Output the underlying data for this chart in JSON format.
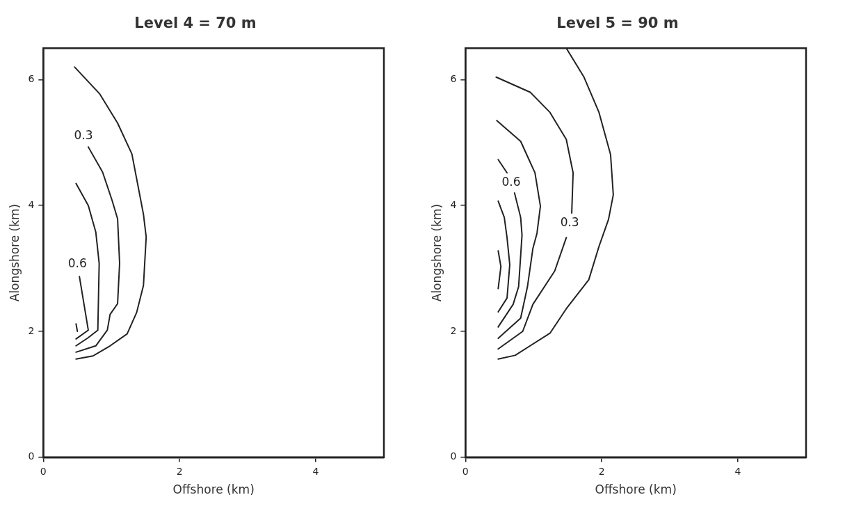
{
  "chart_data": [
    {
      "type": "line",
      "title": "Level 4 = 70 m",
      "xlabel": "Offshore (km)",
      "ylabel": "Alongshore (km)",
      "xlim": [
        0,
        5
      ],
      "ylim": [
        0,
        6.5
      ],
      "xticks": [
        0,
        2,
        4
      ],
      "yticks": [
        0,
        2,
        4,
        6
      ],
      "grid": false,
      "legend": false,
      "marker": "none",
      "line_style": "solid",
      "series": [
        {
          "color": "#222222",
          "x": [
            0.46,
            0.83,
            1.09,
            1.3,
            1.47,
            1.51,
            1.47,
            1.37,
            1.23,
            0.98,
            0.73,
            0.48
          ],
          "values": [
            6.2,
            5.77,
            5.31,
            4.82,
            3.86,
            3.5,
            2.73,
            2.3,
            1.96,
            1.77,
            1.61,
            1.56
          ]
        },
        {
          "color": "#222222",
          "x": [
            0.66,
            0.87,
            1.01,
            1.09,
            1.12,
            1.09,
            0.98,
            0.94,
            0.77,
            0.48
          ],
          "values": [
            4.93,
            4.53,
            4.08,
            3.79,
            3.08,
            2.44,
            2.27,
            2.02,
            1.77,
            1.67
          ]
        },
        {
          "color": "#222222",
          "x": [
            0.48,
            0.66,
            0.77,
            0.82,
            0.8,
            0.66,
            0.48
          ],
          "values": [
            4.35,
            4.0,
            3.58,
            3.08,
            2.02,
            1.9,
            1.77
          ]
        },
        {
          "color": "#222222",
          "x": [
            0.53,
            0.66,
            0.48
          ],
          "values": [
            2.87,
            2.02,
            1.88
          ]
        },
        {
          "color": "#222222",
          "x": [
            0.48,
            0.5
          ],
          "values": [
            2.12,
            2.0
          ]
        }
      ],
      "annotations": [
        {
          "text": "0.3",
          "x": 0.59,
          "y": 5.1
        },
        {
          "text": "0.6",
          "x": 0.5,
          "y": 3.07
        }
      ]
    },
    {
      "type": "line",
      "title": "Level 5 = 90 m",
      "xlabel": "Offshore (km)",
      "ylabel": "Alongshore (km)",
      "xlim": [
        0,
        5
      ],
      "ylim": [
        0,
        6.5
      ],
      "xticks": [
        0,
        2,
        4
      ],
      "yticks": [
        0,
        2,
        4,
        6
      ],
      "grid": false,
      "legend": false,
      "marker": "none",
      "line_style": "solid",
      "series": [
        {
          "color": "#222222",
          "x": [
            1.48,
            1.74,
            1.96,
            2.13,
            2.17,
            2.1,
            1.96,
            1.81,
            1.48,
            1.24,
            0.73,
            0.48
          ],
          "values": [
            6.5,
            6.04,
            5.48,
            4.81,
            4.17,
            3.78,
            3.35,
            2.82,
            2.36,
            1.97,
            1.62,
            1.56
          ]
        },
        {
          "color": "#222222",
          "x": [
            0.45,
            0.95,
            1.24,
            1.48,
            1.58,
            1.56,
            null,
            1.48,
            1.31,
            0.99,
            0.84,
            0.48
          ],
          "values": [
            6.04,
            5.8,
            5.48,
            5.05,
            4.52,
            3.88,
            null,
            3.49,
            2.96,
            2.43,
            2.0,
            1.72
          ]
        },
        {
          "color": "#222222",
          "x": [
            0.46,
            0.81,
            1.02,
            1.1,
            1.05,
            0.99,
            0.91,
            0.81,
            0.48
          ],
          "values": [
            5.35,
            5.02,
            4.52,
            3.99,
            3.56,
            3.32,
            2.71,
            2.21,
            1.89
          ]
        },
        {
          "color": "#222222",
          "x": [
            0.48,
            0.61,
            null,
            0.72,
            0.81,
            0.83,
            0.78,
            0.7,
            0.48
          ],
          "values": [
            4.73,
            4.52,
            null,
            4.2,
            3.81,
            3.53,
            2.71,
            2.43,
            2.07
          ]
        },
        {
          "color": "#222222",
          "x": [
            0.48,
            0.57,
            0.61,
            0.65,
            0.61,
            0.48
          ],
          "values": [
            4.07,
            3.81,
            3.49,
            3.06,
            2.53,
            2.31
          ]
        },
        {
          "color": "#222222",
          "x": [
            0.48,
            0.52,
            0.48
          ],
          "values": [
            3.28,
            3.03,
            2.68
          ]
        }
      ],
      "annotations": [
        {
          "text": "0.6",
          "x": 0.67,
          "y": 4.36
        },
        {
          "text": "0.3",
          "x": 1.53,
          "y": 3.72
        }
      ]
    }
  ]
}
